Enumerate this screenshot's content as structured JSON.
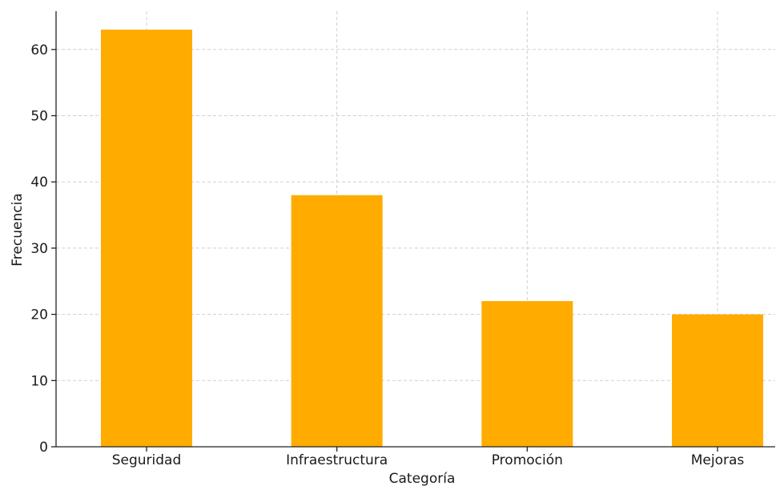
{
  "chart_data": {
    "type": "bar",
    "title": "",
    "xlabel": "Categoría",
    "ylabel": "Frecuencia",
    "categories": [
      "Seguridad",
      "Infraestructura",
      "Promoción",
      "Mejoras"
    ],
    "values": [
      63,
      38,
      22,
      20
    ],
    "ylim": [
      0,
      66
    ],
    "yticks": [
      0,
      10,
      20,
      30,
      40,
      50,
      60
    ],
    "grid": true,
    "legend": "none",
    "colors": {
      "bar": "#FFAB00",
      "grid": "#cfcfcf",
      "axis": "#222222",
      "text": "#1a1a1a"
    }
  }
}
